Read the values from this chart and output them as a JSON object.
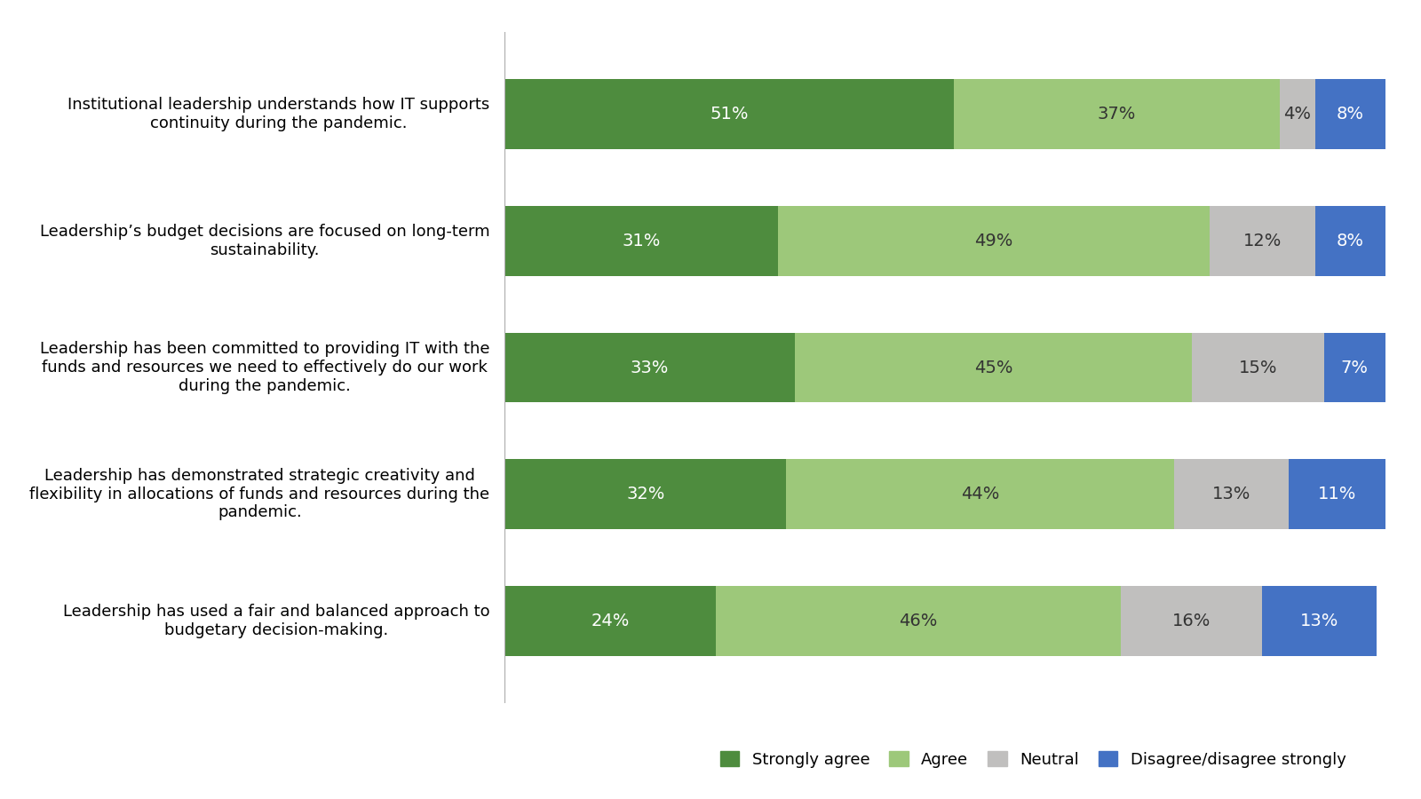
{
  "categories": [
    "Institutional leadership understands how IT supports\ncontinuity during the pandemic.",
    "Leadership’s budget decisions are focused on long-term\nsustainability.",
    "Leadership has been committed to providing IT with the\nfunds and resources we need to effectively do our work\nduring the pandemic.",
    "Leadership has demonstrated strategic creativity and\nflexibility in allocations of funds and resources during the\npandemic.",
    "Leadership has used a fair and balanced approach to\nbudgetary decision-making."
  ],
  "strongly_agree": [
    51,
    31,
    33,
    32,
    24
  ],
  "agree": [
    37,
    49,
    45,
    44,
    46
  ],
  "neutral": [
    4,
    12,
    15,
    13,
    16
  ],
  "disagree": [
    8,
    8,
    7,
    11,
    13
  ],
  "color_strongly_agree": "#4e8c3e",
  "color_agree": "#9dc87a",
  "color_neutral": "#c0bfbe",
  "color_disagree": "#4472c4",
  "legend_labels": [
    "Strongly agree",
    "Agree",
    "Neutral",
    "Disagree/disagree strongly"
  ],
  "background_color": "#ffffff",
  "bar_height": 0.55,
  "figsize": [
    16,
    9
  ]
}
